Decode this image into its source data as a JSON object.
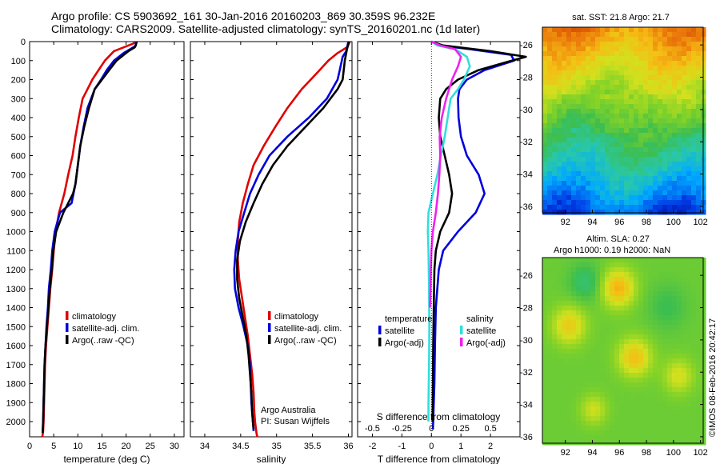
{
  "header": {
    "line1": "Argo profile: CS 5903692_161 30-Jan-2016 20160203_869 30.359S 96.232E",
    "line2": "Climatology: CARS2009. Satellite-adjusted climatology: synTS_20160201.nc (1d later)"
  },
  "side_note": "©IMOS 08-Feb-2016 20:42:17",
  "colors": {
    "climatology": "#e00000",
    "satellite": "#0000dd",
    "argo": "#000000",
    "satellite_diff": "#33dddd",
    "argo_diff": "#ee22ee"
  },
  "chart_data": [
    {
      "type": "line",
      "id": "temperature",
      "xlabel": "temperature (deg C)",
      "xlim": [
        0,
        32
      ],
      "xticks": [
        0,
        5,
        10,
        15,
        20,
        25,
        30
      ],
      "ylim": [
        2080,
        0
      ],
      "yticks": [
        0,
        100,
        200,
        300,
        400,
        500,
        600,
        700,
        800,
        900,
        1000,
        1100,
        1200,
        1300,
        1400,
        1500,
        1600,
        1700,
        1800,
        1900,
        2000
      ],
      "legend": [
        "climatology",
        "satellite-adj. clim.",
        "Argo(..raw -QC)"
      ],
      "series": [
        {
          "name": "climatology",
          "x": [
            22.0,
            21.5,
            20.5,
            17.5,
            15.6,
            14.3,
            13.0,
            12.0,
            11.0,
            10.2,
            9.5,
            8.9,
            8.0,
            7.2,
            6.1,
            5.4,
            5.0,
            4.7,
            4.3,
            4.0,
            3.7,
            3.4,
            3.2,
            3.1,
            3.0,
            2.9,
            2.8,
            2.7,
            2.6
          ],
          "y": [
            0,
            10,
            20,
            50,
            100,
            150,
            200,
            250,
            300,
            400,
            500,
            600,
            700,
            800,
            900,
            1000,
            1100,
            1200,
            1300,
            1400,
            1500,
            1600,
            1700,
            1800,
            1900,
            2000,
            2050,
            2070,
            2080
          ]
        },
        {
          "name": "satellite-adj. clim.",
          "x": [
            22.0,
            22.0,
            21.5,
            19.5,
            17.5,
            16.0,
            14.8,
            13.5,
            12.0,
            11.2,
            10.5,
            10.0,
            9.5,
            8.7,
            6.3,
            5.2,
            4.7,
            4.4,
            4.0,
            3.8,
            3.5,
            3.3,
            3.1,
            3.0,
            2.9,
            2.8,
            2.7
          ],
          "y": [
            0,
            20,
            30,
            60,
            100,
            150,
            200,
            250,
            350,
            450,
            550,
            650,
            750,
            850,
            900,
            1000,
            1100,
            1200,
            1300,
            1400,
            1500,
            1600,
            1700,
            1800,
            1900,
            2000,
            2050
          ]
        },
        {
          "name": "Argo(..raw -QC)",
          "x": [
            22.2,
            22.0,
            21.8,
            20.5,
            18.0,
            16.5,
            15.0,
            13.5,
            12.3,
            11.3,
            10.5,
            10.0,
            9.5,
            9.0,
            7.0,
            5.5,
            4.9,
            4.6,
            4.2,
            3.9,
            3.6,
            3.3,
            3.1,
            3.0,
            2.9,
            2.8,
            2.75,
            2.7
          ],
          "y": [
            0,
            20,
            30,
            50,
            100,
            150,
            200,
            250,
            350,
            450,
            550,
            650,
            750,
            800,
            900,
            1000,
            1100,
            1200,
            1300,
            1400,
            1500,
            1600,
            1700,
            1800,
            1900,
            2000,
            2040,
            2060
          ]
        }
      ]
    },
    {
      "type": "line",
      "id": "salinity",
      "xlabel": "salinity",
      "xlim": [
        33.8,
        36.05
      ],
      "xticks": [
        34,
        34.5,
        35,
        35.5,
        36
      ],
      "ylim": [
        2080,
        0
      ],
      "legend": [
        "climatology",
        "satellite-adj. clim.",
        "Argo(..raw -QC)"
      ],
      "annotation": [
        "Argo Australia",
        "PI: Susan Wijffels"
      ],
      "series": [
        {
          "name": "climatology",
          "x": [
            36.02,
            35.98,
            35.85,
            35.72,
            35.6,
            35.35,
            35.15,
            34.98,
            34.82,
            34.68,
            34.6,
            34.53,
            34.48,
            34.46,
            34.46,
            34.48,
            34.52,
            34.56,
            34.6,
            34.63,
            34.66,
            34.68,
            34.69,
            34.7,
            34.71,
            34.72,
            34.73
          ],
          "y": [
            0,
            30,
            60,
            100,
            150,
            250,
            350,
            450,
            550,
            650,
            750,
            850,
            950,
            1050,
            1150,
            1250,
            1350,
            1450,
            1550,
            1650,
            1750,
            1850,
            1950,
            2000,
            2030,
            2060,
            2080
          ]
        },
        {
          "name": "satellite-adj. clim.",
          "x": [
            36.0,
            35.97,
            35.92,
            35.88,
            35.85,
            35.7,
            35.45,
            35.15,
            34.9,
            34.75,
            34.63,
            34.55,
            34.47,
            34.43,
            34.41,
            34.42,
            34.47,
            34.54,
            34.6,
            34.63,
            34.64,
            34.65,
            34.66,
            34.67,
            34.68
          ],
          "y": [
            0,
            50,
            80,
            150,
            200,
            300,
            400,
            500,
            600,
            700,
            800,
            900,
            1000,
            1100,
            1200,
            1300,
            1400,
            1500,
            1600,
            1700,
            1800,
            1900,
            1950,
            2000,
            2050
          ]
        },
        {
          "name": "Argo(..raw -QC)",
          "x": [
            36.01,
            35.98,
            35.95,
            35.92,
            35.85,
            35.65,
            35.4,
            35.15,
            34.95,
            34.8,
            34.68,
            34.57,
            34.49,
            34.45,
            34.45,
            34.48,
            34.53,
            34.58,
            34.61,
            34.63,
            34.65,
            34.66,
            34.67,
            34.68
          ],
          "y": [
            0,
            40,
            100,
            200,
            250,
            350,
            450,
            550,
            650,
            750,
            850,
            950,
            1050,
            1150,
            1250,
            1350,
            1450,
            1550,
            1650,
            1750,
            1850,
            1950,
            2000,
            2040
          ]
        }
      ]
    },
    {
      "type": "line",
      "id": "difference",
      "xlabel": "T difference from climatology",
      "xlabel_top": "S difference from climatology",
      "xlim": [
        -2.5,
        3.0
      ],
      "xticks": [
        -2,
        -1,
        0,
        1,
        2
      ],
      "top_ticks": [
        {
          "label": "-0.5",
          "x": -2
        },
        {
          "label": "-0.25",
          "x": -1
        },
        {
          "label": "0",
          "x": 0
        },
        {
          "label": "0.25",
          "x": 1
        },
        {
          "label": "0.5",
          "x": 2
        }
      ],
      "ylim": [
        2080,
        0
      ],
      "legend_temperature_title": "temperature",
      "legend_salinity_title": "salinity",
      "legend": [
        "satellite",
        "Argo(-adj)",
        "satellite",
        "Argo(-adj)"
      ],
      "series": [
        {
          "name": "temperature satellite",
          "x": [
            0.0,
            0.3,
            1.3,
            2.7,
            2.8,
            1.8,
            1.2,
            0.95,
            0.9,
            0.92,
            1.0,
            1.2,
            1.6,
            1.8,
            1.5,
            0.9,
            0.4,
            0.25,
            0.15,
            0.12,
            0.1,
            0.08,
            0.06,
            0.05
          ],
          "y": [
            0,
            20,
            40,
            70,
            100,
            150,
            200,
            250,
            300,
            400,
            500,
            600,
            700,
            800,
            900,
            1000,
            1100,
            1200,
            1400,
            1600,
            1800,
            1900,
            2000,
            2040
          ]
        },
        {
          "name": "temperature Argo(-adj)",
          "x": [
            0.0,
            0.4,
            2.0,
            3.2,
            2.5,
            1.6,
            0.9,
            0.5,
            0.3,
            0.25,
            0.3,
            0.45,
            0.6,
            0.7,
            0.6,
            0.3,
            0.15,
            0.1,
            0.08,
            0.06,
            0.05,
            0.04
          ],
          "y": [
            0,
            20,
            50,
            80,
            110,
            150,
            200,
            250,
            300,
            400,
            500,
            600,
            700,
            800,
            900,
            1000,
            1100,
            1200,
            1400,
            1600,
            1800,
            2000
          ]
        },
        {
          "name": "salinity satellite",
          "x": [
            0.0,
            0.2,
            0.8,
            1.2,
            1.3,
            1.1,
            0.9,
            0.65,
            0.55,
            0.45,
            0.32,
            0.2,
            0.05,
            -0.1,
            -0.12,
            -0.1,
            -0.08,
            -0.07,
            -0.08,
            -0.1,
            -0.1
          ],
          "y": [
            0,
            20,
            40,
            80,
            130,
            200,
            250,
            300,
            400,
            500,
            600,
            700,
            800,
            900,
            1000,
            1100,
            1300,
            1500,
            1700,
            1900,
            2000
          ]
        },
        {
          "name": "salinity Argo(-adj)",
          "x": [
            0.0,
            0.3,
            0.8,
            1.0,
            0.9,
            0.7,
            0.5,
            0.35,
            0.28,
            0.3,
            0.27,
            0.22,
            0.15,
            0.05,
            0.0,
            -0.02,
            -0.03,
            -0.05
          ],
          "y": [
            0,
            20,
            40,
            80,
            130,
            200,
            300,
            400,
            500,
            600,
            700,
            800,
            900,
            1000,
            1100,
            1200,
            1300,
            1400
          ]
        }
      ]
    },
    {
      "type": "heatmap",
      "id": "sst",
      "title": "sat. SST: 21.8 Argo: 21.7",
      "xticks": [
        92,
        94,
        96,
        98,
        100,
        102
      ],
      "yticks": [
        -26,
        -28,
        -30,
        -32,
        -34,
        -36
      ],
      "xlim": [
        90.3,
        102.2
      ],
      "ylim": [
        -36.4,
        -24.9
      ],
      "sst_value": 21.8,
      "argo_value": 21.7
    },
    {
      "type": "heatmap",
      "id": "sla",
      "title": "Altim. SLA: 0.27",
      "subtitle": "Argo h1000: 0.19 h2000: NaN",
      "xticks": [
        92,
        94,
        96,
        98,
        100,
        102
      ],
      "yticks": [
        -26,
        -28,
        -30,
        -32,
        -34,
        -36
      ],
      "xlim": [
        90.3,
        102.2
      ],
      "ylim": [
        -36.4,
        -24.9
      ],
      "sla_value": 0.27,
      "h1000_value": 0.19,
      "h2000_value": "NaN"
    }
  ]
}
